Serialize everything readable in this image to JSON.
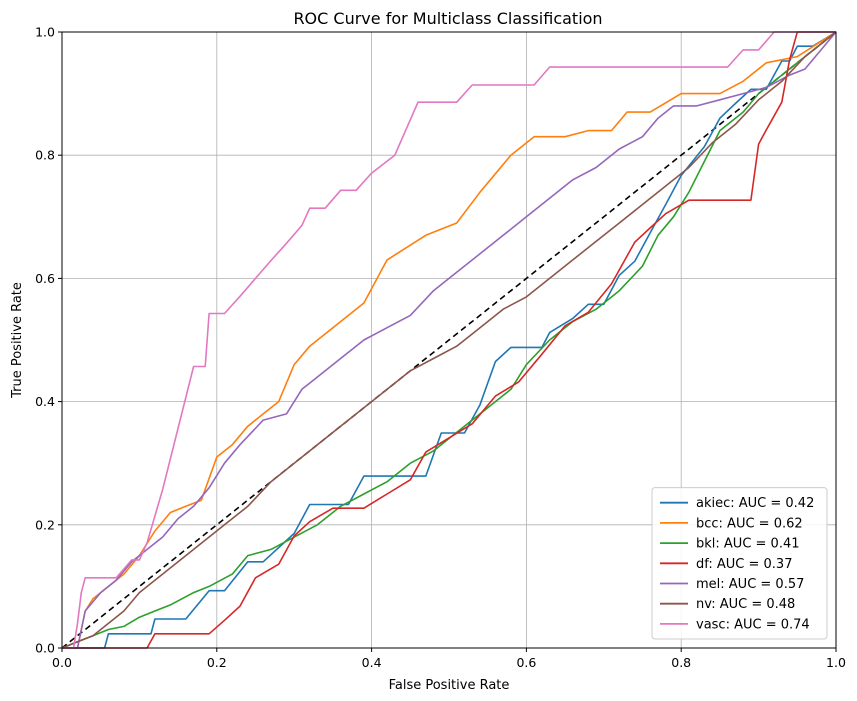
{
  "chart_data": {
    "type": "line",
    "title": "ROC Curve for Multiclass Classification",
    "xlabel": "False Positive Rate",
    "ylabel": "True Positive Rate",
    "xlim": [
      0,
      1
    ],
    "ylim": [
      0,
      1
    ],
    "xticks": [
      "0.0",
      "0.2",
      "0.4",
      "0.6",
      "0.8",
      "1.0"
    ],
    "yticks": [
      "0.0",
      "0.2",
      "0.4",
      "0.6",
      "0.8",
      "1.0"
    ],
    "grid": true,
    "legend_position": "lower-right",
    "diagonal": {
      "x": [
        0,
        1
      ],
      "y": [
        0,
        1
      ],
      "color": "#000000",
      "style": "dashed"
    },
    "series": [
      {
        "name": "akiec: AUC = 0.42",
        "color": "#1f77b4",
        "x": [
          0.0,
          0.02,
          0.055,
          0.06,
          0.115,
          0.12,
          0.16,
          0.19,
          0.21,
          0.24,
          0.26,
          0.3,
          0.32,
          0.35,
          0.37,
          0.39,
          0.4,
          0.43,
          0.47,
          0.49,
          0.52,
          0.54,
          0.56,
          0.58,
          0.62,
          0.63,
          0.66,
          0.68,
          0.7,
          0.72,
          0.74,
          0.76,
          0.78,
          0.8,
          0.83,
          0.85,
          0.87,
          0.89,
          0.9,
          0.91,
          0.93,
          0.94,
          0.95,
          0.97,
          1.0
        ],
        "y": [
          0.0,
          0.0,
          0.0,
          0.023,
          0.023,
          0.047,
          0.047,
          0.093,
          0.093,
          0.14,
          0.14,
          0.186,
          0.233,
          0.233,
          0.233,
          0.279,
          0.279,
          0.279,
          0.279,
          0.349,
          0.349,
          0.395,
          0.465,
          0.488,
          0.488,
          0.512,
          0.535,
          0.558,
          0.558,
          0.605,
          0.628,
          0.674,
          0.72,
          0.767,
          0.814,
          0.86,
          0.884,
          0.907,
          0.907,
          0.907,
          0.953,
          0.953,
          0.977,
          0.977,
          1.0
        ]
      },
      {
        "name": "bcc: AUC = 0.62",
        "color": "#ff7f0e",
        "x": [
          0.0,
          0.02,
          0.03,
          0.04,
          0.06,
          0.08,
          0.1,
          0.12,
          0.14,
          0.16,
          0.18,
          0.2,
          0.22,
          0.24,
          0.26,
          0.28,
          0.3,
          0.32,
          0.35,
          0.39,
          0.42,
          0.47,
          0.51,
          0.54,
          0.58,
          0.61,
          0.65,
          0.68,
          0.71,
          0.73,
          0.76,
          0.8,
          0.85,
          0.88,
          0.91,
          0.95,
          1.0
        ],
        "y": [
          0.0,
          0.0,
          0.06,
          0.08,
          0.1,
          0.12,
          0.15,
          0.19,
          0.22,
          0.23,
          0.24,
          0.31,
          0.33,
          0.36,
          0.38,
          0.4,
          0.46,
          0.49,
          0.52,
          0.56,
          0.63,
          0.67,
          0.69,
          0.74,
          0.8,
          0.83,
          0.83,
          0.84,
          0.84,
          0.87,
          0.87,
          0.9,
          0.9,
          0.92,
          0.95,
          0.96,
          1.0
        ]
      },
      {
        "name": "bkl: AUC = 0.41",
        "color": "#2ca02c",
        "x": [
          0.0,
          0.02,
          0.04,
          0.06,
          0.08,
          0.1,
          0.12,
          0.14,
          0.17,
          0.19,
          0.22,
          0.24,
          0.27,
          0.3,
          0.33,
          0.36,
          0.39,
          0.42,
          0.45,
          0.48,
          0.51,
          0.55,
          0.58,
          0.6,
          0.63,
          0.66,
          0.69,
          0.72,
          0.75,
          0.77,
          0.79,
          0.81,
          0.83,
          0.85,
          0.88,
          0.9,
          0.93,
          0.95,
          0.97,
          1.0
        ],
        "y": [
          0.0,
          0.01,
          0.02,
          0.03,
          0.035,
          0.05,
          0.06,
          0.07,
          0.09,
          0.1,
          0.12,
          0.15,
          0.16,
          0.18,
          0.2,
          0.23,
          0.25,
          0.27,
          0.3,
          0.32,
          0.35,
          0.39,
          0.42,
          0.46,
          0.5,
          0.53,
          0.55,
          0.58,
          0.62,
          0.67,
          0.7,
          0.74,
          0.79,
          0.84,
          0.87,
          0.9,
          0.93,
          0.95,
          0.97,
          1.0
        ]
      },
      {
        "name": "df: AUC = 0.37",
        "color": "#d62728",
        "x": [
          0.0,
          0.02,
          0.06,
          0.11,
          0.12,
          0.19,
          0.21,
          0.23,
          0.25,
          0.28,
          0.3,
          0.32,
          0.35,
          0.39,
          0.42,
          0.45,
          0.47,
          0.5,
          0.53,
          0.56,
          0.59,
          0.62,
          0.65,
          0.68,
          0.71,
          0.74,
          0.76,
          0.78,
          0.81,
          0.84,
          0.87,
          0.89,
          0.9,
          0.91,
          0.93,
          0.94,
          0.95,
          0.97,
          1.0
        ],
        "y": [
          0.0,
          0.0,
          0.0,
          0.0,
          0.023,
          0.023,
          0.045,
          0.068,
          0.114,
          0.136,
          0.182,
          0.205,
          0.227,
          0.227,
          0.25,
          0.273,
          0.318,
          0.341,
          0.364,
          0.409,
          0.432,
          0.477,
          0.523,
          0.545,
          0.591,
          0.659,
          0.682,
          0.705,
          0.727,
          0.727,
          0.727,
          0.727,
          0.818,
          0.841,
          0.886,
          0.955,
          1.0,
          1.0,
          1.0
        ]
      },
      {
        "name": "mel: AUC = 0.57",
        "color": "#9467bd",
        "x": [
          0.0,
          0.02,
          0.03,
          0.05,
          0.07,
          0.09,
          0.11,
          0.13,
          0.15,
          0.17,
          0.19,
          0.21,
          0.23,
          0.26,
          0.29,
          0.31,
          0.33,
          0.36,
          0.39,
          0.42,
          0.45,
          0.48,
          0.51,
          0.54,
          0.57,
          0.6,
          0.63,
          0.66,
          0.69,
          0.72,
          0.75,
          0.77,
          0.79,
          0.82,
          0.85,
          0.88,
          0.91,
          0.94,
          0.96,
          0.98,
          1.0
        ],
        "y": [
          0.0,
          0.0,
          0.06,
          0.09,
          0.11,
          0.14,
          0.16,
          0.18,
          0.21,
          0.23,
          0.26,
          0.3,
          0.33,
          0.37,
          0.38,
          0.42,
          0.44,
          0.47,
          0.5,
          0.52,
          0.54,
          0.58,
          0.61,
          0.64,
          0.67,
          0.7,
          0.73,
          0.76,
          0.78,
          0.81,
          0.83,
          0.86,
          0.88,
          0.88,
          0.89,
          0.9,
          0.91,
          0.93,
          0.94,
          0.97,
          1.0
        ]
      },
      {
        "name": "nv: AUC = 0.48",
        "color": "#8c564b",
        "x": [
          0.0,
          0.02,
          0.04,
          0.06,
          0.08,
          0.1,
          0.12,
          0.14,
          0.16,
          0.18,
          0.21,
          0.24,
          0.27,
          0.3,
          0.33,
          0.36,
          0.39,
          0.42,
          0.45,
          0.48,
          0.51,
          0.54,
          0.57,
          0.6,
          0.63,
          0.66,
          0.69,
          0.72,
          0.75,
          0.78,
          0.81,
          0.84,
          0.87,
          0.9,
          0.93,
          0.96,
          1.0
        ],
        "y": [
          0.0,
          0.01,
          0.02,
          0.04,
          0.06,
          0.09,
          0.11,
          0.13,
          0.15,
          0.17,
          0.2,
          0.23,
          0.27,
          0.3,
          0.33,
          0.36,
          0.39,
          0.42,
          0.45,
          0.47,
          0.49,
          0.52,
          0.55,
          0.57,
          0.6,
          0.63,
          0.66,
          0.69,
          0.72,
          0.75,
          0.78,
          0.82,
          0.85,
          0.89,
          0.92,
          0.96,
          1.0
        ]
      },
      {
        "name": "vasc: AUC = 0.74",
        "color": "#e377c2",
        "x": [
          0.0,
          0.015,
          0.02,
          0.025,
          0.03,
          0.05,
          0.07,
          0.09,
          0.1,
          0.11,
          0.13,
          0.17,
          0.18,
          0.185,
          0.19,
          0.21,
          0.23,
          0.25,
          0.27,
          0.29,
          0.31,
          0.32,
          0.34,
          0.36,
          0.38,
          0.4,
          0.43,
          0.46,
          0.49,
          0.51,
          0.53,
          0.56,
          0.59,
          0.61,
          0.63,
          0.66,
          0.7,
          0.74,
          0.78,
          0.81,
          0.84,
          0.86,
          0.88,
          0.89,
          0.9,
          0.92,
          0.95,
          1.0
        ],
        "y": [
          0.0,
          0.0,
          0.04,
          0.09,
          0.114,
          0.114,
          0.114,
          0.143,
          0.143,
          0.171,
          0.257,
          0.457,
          0.457,
          0.457,
          0.543,
          0.543,
          0.571,
          0.6,
          0.629,
          0.657,
          0.686,
          0.714,
          0.714,
          0.743,
          0.743,
          0.771,
          0.8,
          0.886,
          0.886,
          0.886,
          0.914,
          0.914,
          0.914,
          0.914,
          0.943,
          0.943,
          0.943,
          0.943,
          0.943,
          0.943,
          0.943,
          0.943,
          0.971,
          0.971,
          0.971,
          1.0,
          1.0,
          1.0
        ]
      }
    ]
  }
}
